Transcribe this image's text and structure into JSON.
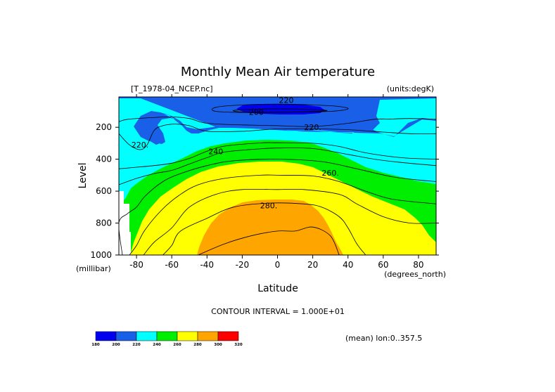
{
  "chart_data": {
    "type": "contour",
    "title": "Monthly Mean Air temperature",
    "source_file": "[T_1978-04_NCEP.nc]",
    "units": "(units:degK)",
    "xlabel": "Latitude",
    "x_units": "(degrees_north)",
    "ylabel": "Level",
    "y_units": "(millibar)",
    "x_range": [
      -90,
      90
    ],
    "y_range": [
      1000,
      10
    ],
    "x_ticks": [
      -80,
      -60,
      -40,
      -20,
      0,
      20,
      40,
      60,
      80
    ],
    "y_ticks": [
      200,
      400,
      600,
      800,
      1000
    ],
    "contour_interval_text": "CONTOUR INTERVAL = 1.000E+01",
    "averaging_note": "(mean) lon:0..357.5",
    "contour_labels": [
      {
        "text": "220",
        "lat": 5,
        "lev": 30
      },
      {
        "text": "200",
        "lat": -12,
        "lev": 105
      },
      {
        "text": "220.",
        "lat": 20,
        "lev": 200
      },
      {
        "text": "220.",
        "lat": -78,
        "lev": 310
      },
      {
        "text": "240",
        "lat": -35,
        "lev": 350
      },
      {
        "text": "260.",
        "lat": 30,
        "lev": 485
      },
      {
        "text": "280.",
        "lat": -5,
        "lev": 690
      }
    ],
    "bands": [
      {
        "min": 180,
        "max": 200,
        "color": "#0000ee"
      },
      {
        "min": 200,
        "max": 220,
        "color": "#1a5fe8"
      },
      {
        "min": 220,
        "max": 240,
        "color": "#00ffff"
      },
      {
        "min": 240,
        "max": 260,
        "color": "#00ee00"
      },
      {
        "min": 260,
        "max": 280,
        "color": "#ffff00"
      },
      {
        "min": 280,
        "max": 300,
        "color": "#ffa500"
      },
      {
        "min": 300,
        "max": 320,
        "color": "#ff0000"
      }
    ],
    "colorbar_labels": [
      "180",
      "200",
      "220",
      "240",
      "260",
      "280",
      "300",
      "320"
    ],
    "isotherms": [
      {
        "value": 200,
        "closed": true,
        "points": [
          [
            -35,
            75
          ],
          [
            -20,
            60
          ],
          [
            0,
            55
          ],
          [
            20,
            60
          ],
          [
            35,
            70
          ],
          [
            40,
            85
          ],
          [
            30,
            100
          ],
          [
            10,
            105
          ],
          [
            -15,
            108
          ],
          [
            -35,
            100
          ]
        ]
      },
      {
        "value": 210,
        "closed": true,
        "points": [
          [
            -25,
            95
          ],
          [
            -15,
            88
          ],
          [
            0,
            85
          ],
          [
            15,
            88
          ],
          [
            28,
            95
          ],
          [
            20,
            102
          ],
          [
            0,
            105
          ],
          [
            -20,
            104
          ]
        ]
      },
      {
        "value": 220,
        "closed": false,
        "points": [
          [
            -90,
            165
          ],
          [
            -85,
            150
          ],
          [
            -72,
            140
          ],
          [
            -60,
            135
          ],
          [
            -50,
            145
          ],
          [
            -40,
            175
          ],
          [
            -20,
            185
          ],
          [
            0,
            190
          ],
          [
            20,
            195
          ],
          [
            40,
            175
          ],
          [
            55,
            150
          ],
          [
            65,
            148
          ],
          [
            75,
            145
          ],
          [
            90,
            150
          ]
        ]
      },
      {
        "value": 220,
        "closed": false,
        "points": [
          [
            -90,
            240
          ],
          [
            -84,
            310
          ],
          [
            -78,
            340
          ],
          [
            -74,
            310
          ],
          [
            -70,
            220
          ],
          [
            -65,
            190
          ],
          [
            -58,
            180
          ],
          [
            -50,
            190
          ],
          [
            -40,
            225
          ],
          [
            -20,
            225
          ],
          [
            0,
            210
          ],
          [
            20,
            210
          ],
          [
            40,
            215
          ],
          [
            60,
            230
          ],
          [
            75,
            240
          ],
          [
            90,
            240
          ]
        ]
      },
      {
        "value": 230,
        "closed": false,
        "points": [
          [
            -90,
            460
          ],
          [
            -80,
            450
          ],
          [
            -70,
            440
          ],
          [
            -60,
            425
          ],
          [
            -50,
            395
          ],
          [
            -40,
            350
          ],
          [
            -30,
            318
          ],
          [
            -10,
            298
          ],
          [
            0,
            297
          ],
          [
            20,
            300
          ],
          [
            35,
            320
          ],
          [
            50,
            360
          ],
          [
            70,
            390
          ],
          [
            90,
            400
          ]
        ]
      },
      {
        "value": 240,
        "closed": false,
        "points": [
          [
            -90,
            560
          ],
          [
            -80,
            520
          ],
          [
            -70,
            490
          ],
          [
            -60,
            470
          ],
          [
            -50,
            430
          ],
          [
            -40,
            390
          ],
          [
            -30,
            355
          ],
          [
            -10,
            335
          ],
          [
            0,
            330
          ],
          [
            20,
            333
          ],
          [
            40,
            370
          ],
          [
            55,
            400
          ],
          [
            70,
            420
          ],
          [
            90,
            440
          ]
        ]
      },
      {
        "value": 250,
        "closed": false,
        "points": [
          [
            -88,
            1000
          ],
          [
            -90,
            800
          ],
          [
            -85,
            740
          ],
          [
            -80,
            700
          ],
          [
            -75,
            630
          ],
          [
            -65,
            540
          ],
          [
            -55,
            490
          ],
          [
            -40,
            440
          ],
          [
            -25,
            410
          ],
          [
            0,
            400
          ],
          [
            25,
            415
          ],
          [
            45,
            460
          ],
          [
            65,
            510
          ],
          [
            80,
            530
          ],
          [
            90,
            540
          ]
        ]
      },
      {
        "value": 260,
        "closed": false,
        "points": [
          [
            -84,
            1000
          ],
          [
            -80,
            940
          ],
          [
            -75,
            840
          ],
          [
            -65,
            710
          ],
          [
            -55,
            620
          ],
          [
            -45,
            560
          ],
          [
            -30,
            520
          ],
          [
            -10,
            500
          ],
          [
            0,
            500
          ],
          [
            20,
            505
          ],
          [
            35,
            540
          ],
          [
            50,
            600
          ],
          [
            65,
            650
          ],
          [
            90,
            680
          ]
        ]
      },
      {
        "value": 270,
        "closed": false,
        "points": [
          [
            -76,
            1000
          ],
          [
            -70,
            920
          ],
          [
            -60,
            830
          ],
          [
            -50,
            700
          ],
          [
            -35,
            620
          ],
          [
            -20,
            590
          ],
          [
            0,
            590
          ],
          [
            15,
            590
          ],
          [
            35,
            620
          ],
          [
            45,
            680
          ],
          [
            60,
            760
          ],
          [
            75,
            800
          ],
          [
            90,
            800
          ]
        ]
      },
      {
        "value": 280,
        "closed": false,
        "points": [
          [
            -65,
            1000
          ],
          [
            -60,
            940
          ],
          [
            -55,
            850
          ],
          [
            -40,
            770
          ],
          [
            -25,
            700
          ],
          [
            -5,
            675
          ],
          [
            15,
            680
          ],
          [
            25,
            700
          ],
          [
            35,
            760
          ],
          [
            40,
            830
          ],
          [
            45,
            930
          ],
          [
            50,
            1000
          ]
        ]
      },
      {
        "value": 290,
        "closed": false,
        "points": [
          [
            -45,
            1000
          ],
          [
            -30,
            930
          ],
          [
            -15,
            880
          ],
          [
            0,
            850
          ],
          [
            10,
            850
          ],
          [
            20,
            825
          ],
          [
            30,
            880
          ],
          [
            35,
            1000
          ]
        ]
      }
    ]
  }
}
